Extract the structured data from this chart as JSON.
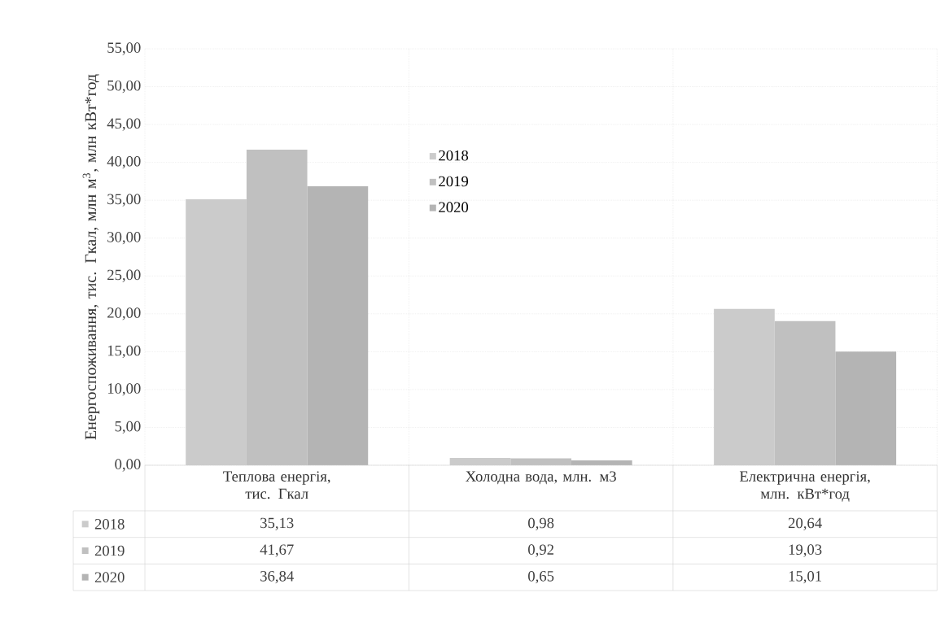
{
  "chart_data": {
    "type": "bar",
    "ylabel": "Енергоспоживання, тис. Гкал, млн м$^{3}$, млн кВт*год",
    "categories": [
      "Теплова енергія, тис. Гкал",
      "Холодна вода, млн. м3",
      "Електрична енергія, млн. кВт*год"
    ],
    "series": [
      {
        "name": "2018",
        "color": "#cbcbcb",
        "values": [
          35.13,
          0.98,
          20.64
        ],
        "value_labels": [
          "35,13",
          "0,98",
          "20,64"
        ]
      },
      {
        "name": "2019",
        "color": "#c0c0c0",
        "values": [
          41.67,
          0.92,
          19.03
        ],
        "value_labels": [
          "41,67",
          "0,92",
          "19,03"
        ]
      },
      {
        "name": "2020",
        "color": "#b4b4b4",
        "values": [
          36.84,
          0.65,
          15.01
        ],
        "value_labels": [
          "36,84",
          "0,65",
          "15,01"
        ]
      }
    ],
    "ylim": [
      0,
      55
    ],
    "yticks": [
      {
        "value": 0,
        "label": "0,00"
      },
      {
        "value": 5,
        "label": "5,00"
      },
      {
        "value": 10,
        "label": "10,00"
      },
      {
        "value": 15,
        "label": "15,00"
      },
      {
        "value": 20,
        "label": "20,00"
      },
      {
        "value": 25,
        "label": "25,00"
      },
      {
        "value": 30,
        "label": "30,00"
      },
      {
        "value": 35,
        "label": "35,00"
      },
      {
        "value": 40,
        "label": "40,00"
      },
      {
        "value": 45,
        "label": "45,00"
      },
      {
        "value": 50,
        "label": "50,00"
      },
      {
        "value": 55,
        "label": "55,00"
      }
    ],
    "grid": "y",
    "legend": "top"
  }
}
